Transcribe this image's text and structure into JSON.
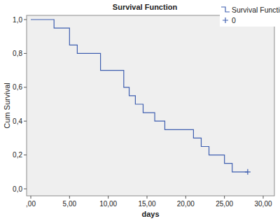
{
  "chart_data": {
    "type": "line",
    "title": "Survival Function",
    "x_label": "days",
    "y_label": "Cum Survival",
    "series": [
      {
        "name": "Survival Function",
        "type": "line",
        "line_style": "step",
        "color": "#3f5fb0",
        "x": [
          0,
          3,
          5,
          6,
          9,
          12,
          12.7,
          13.5,
          14.5,
          16,
          17.3,
          21,
          22,
          23,
          25,
          26,
          28
        ],
        "values": [
          1,
          0.95,
          0.85,
          0.8,
          0.7,
          0.6,
          0.55,
          0.5,
          0.45,
          0.4,
          0.35,
          0.3,
          0.25,
          0.2,
          0.15,
          0.1,
          0.1
        ]
      },
      {
        "name": "0",
        "type": "scatter",
        "marker": "plus",
        "color": "#3f5fb0",
        "x": [
          28
        ],
        "values": [
          0.1
        ]
      }
    ],
    "xlim": [
      0,
      30
    ],
    "xticks": [
      {
        "value": 0,
        "label": ",00"
      },
      {
        "value": 5,
        "label": "5,00"
      },
      {
        "value": 10,
        "label": "10,00"
      },
      {
        "value": 15,
        "label": "15,00"
      },
      {
        "value": 20,
        "label": "20,00"
      },
      {
        "value": 25,
        "label": "25,00"
      },
      {
        "value": 30,
        "label": "30,00"
      }
    ],
    "ylim": [
      0,
      1
    ],
    "yticks": [
      {
        "value": 0,
        "label": "0,0"
      },
      {
        "value": 0.2,
        "label": "0,2"
      },
      {
        "value": 0.4,
        "label": "0,4"
      },
      {
        "value": 0.6,
        "label": "0,6"
      },
      {
        "value": 0.8,
        "label": "0,8"
      },
      {
        "value": 1,
        "label": "1,0"
      }
    ],
    "grid": false,
    "legend": "top-right"
  }
}
